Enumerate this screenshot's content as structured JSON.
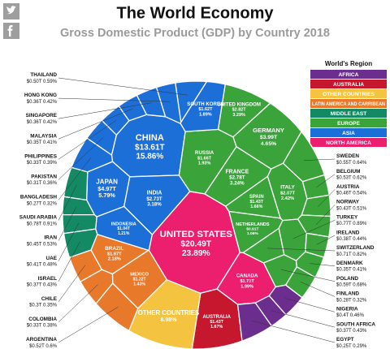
{
  "chart_data": {
    "type": "voronoi-treemap",
    "title": "The World Economy",
    "subtitle": "Gross Domestic Product (GDP) by Country 2018",
    "legend_title": "World's Region",
    "regions": [
      {
        "name": "AFRICA",
        "color": "#6b2d8e"
      },
      {
        "name": "AUSTRALIA",
        "color": "#c5172e"
      },
      {
        "name": "OTHER COUNTRIES",
        "color": "#f4c33f"
      },
      {
        "name": "LATIN AMERICA AND CARRIBEAN",
        "color": "#e8782a"
      },
      {
        "name": "MIDDLE EAST",
        "color": "#138a63"
      },
      {
        "name": "EUROPE",
        "color": "#3aa43a"
      },
      {
        "name": "ASIA",
        "color": "#1d6fd8"
      },
      {
        "name": "NORTH AMERICA",
        "color": "#ec1f6f"
      }
    ],
    "cells": [
      {
        "name": "UNITED STATES",
        "region": "NORTH AMERICA",
        "value": 20.49,
        "value_label": "$20.49T",
        "share": 23.89,
        "share_label": "23.89%"
      },
      {
        "name": "CHINA",
        "region": "ASIA",
        "value": 13.61,
        "value_label": "$13.61T",
        "share": 15.86,
        "share_label": "15.86%"
      },
      {
        "name": "JAPAN",
        "region": "ASIA",
        "value": 4.97,
        "value_label": "$4.97T",
        "share": 5.79,
        "share_label": "5.79%"
      },
      {
        "name": "GERMANY",
        "region": "EUROPE",
        "value": 3.99,
        "value_label": "$3.99T",
        "share": 4.65,
        "share_label": "4.65%"
      },
      {
        "name": "UNITED KINGDOM",
        "region": "EUROPE",
        "value": 2.82,
        "value_label": "$2.82T",
        "share": 3.29,
        "share_label": "3.29%"
      },
      {
        "name": "FRANCE",
        "region": "EUROPE",
        "value": 2.78,
        "value_label": "$2.78T",
        "share": 3.24,
        "share_label": "3.24%"
      },
      {
        "name": "INDIA",
        "region": "ASIA",
        "value": 2.73,
        "value_label": "$2.73T",
        "share": 3.18,
        "share_label": "3.18%"
      },
      {
        "name": "ITALY",
        "region": "EUROPE",
        "value": 2.07,
        "value_label": "$2.07T",
        "share": 2.42,
        "share_label": "2.42%"
      },
      {
        "name": "BRAZIL",
        "region": "LATIN AMERICA AND CARRIBEAN",
        "value": 1.87,
        "value_label": "$1.87T",
        "share": 2.18,
        "share_label": "2.18%"
      },
      {
        "name": "CANADA",
        "region": "NORTH AMERICA",
        "value": 1.71,
        "value_label": "$1.71T",
        "share": 1.99,
        "share_label": "1.99%"
      },
      {
        "name": "RUSSIA",
        "region": "EUROPE",
        "value": 1.66,
        "value_label": "$1.66T",
        "share": 1.93,
        "share_label": "1.93%"
      },
      {
        "name": "SOUTH KOREA",
        "region": "ASIA",
        "value": 1.62,
        "value_label": "$1.62T",
        "share": 1.89,
        "share_label": "1.89%"
      },
      {
        "name": "SPAIN",
        "region": "EUROPE",
        "value": 1.43,
        "value_label": "$1.43T",
        "share": 1.66,
        "share_label": "1.66%"
      },
      {
        "name": "AUSTRALIA",
        "region": "AUSTRALIA",
        "value": 1.43,
        "value_label": "$1.43T",
        "share": 1.67,
        "share_label": "1.67%"
      },
      {
        "name": "MEXICO",
        "region": "LATIN AMERICA AND CARRIBEAN",
        "value": 1.22,
        "value_label": "$1.22T",
        "share": 1.43,
        "share_label": "1.43%"
      },
      {
        "name": "INDONESIA",
        "region": "ASIA",
        "value": 1.04,
        "value_label": "$1.04T",
        "share": 1.21,
        "share_label": "1.21%"
      },
      {
        "name": "NETHERLANDS",
        "region": "EUROPE",
        "value": 0.91,
        "value_label": "$0.91T",
        "share": 1.06,
        "share_label": "1.06%"
      },
      {
        "name": "OTHER COUNTRIES",
        "region": "OTHER COUNTRIES",
        "share": 8.98,
        "share_label": "8.98%"
      },
      {
        "name": "SAUDI ARABIA",
        "region": "MIDDLE EAST",
        "value": 0.78,
        "value_label": "$0.78T",
        "share": 0.91,
        "share_label": "0.91%"
      },
      {
        "name": "TURKEY",
        "region": "EUROPE",
        "value": 0.77,
        "value_label": "$0.77T",
        "share": 0.89,
        "share_label": "0.89%"
      },
      {
        "name": "SWITZERLAND",
        "region": "EUROPE",
        "value": 0.71,
        "value_label": "$0.71T",
        "share": 0.82,
        "share_label": "0.82%"
      },
      {
        "name": "POLAND",
        "region": "EUROPE",
        "value": 0.59,
        "value_label": "$0.59T",
        "share": 0.68,
        "share_label": "0.68%"
      },
      {
        "name": "SWEDEN",
        "region": "EUROPE",
        "value": 0.55,
        "value_label": "$0.55T",
        "share": 0.64,
        "share_label": "0.64%"
      },
      {
        "name": "BELGIUM",
        "region": "EUROPE",
        "value": 0.53,
        "value_label": "$0.53T",
        "share": 0.62,
        "share_label": "0.62%"
      },
      {
        "name": "ARGENTINA",
        "region": "LATIN AMERICA AND CARRIBEAN",
        "value": 0.52,
        "value_label": "$0.52T",
        "share": 0.6,
        "share_label": "0.6%"
      },
      {
        "name": "THAILAND",
        "region": "ASIA",
        "value": 0.5,
        "value_label": "$0.50T",
        "share": 0.59,
        "share_label": "0.59%"
      },
      {
        "name": "AUSTRIA",
        "region": "EUROPE",
        "value": 0.46,
        "value_label": "$0.46T",
        "share": 0.54,
        "share_label": "0.54%"
      },
      {
        "name": "IRAN",
        "region": "MIDDLE EAST",
        "value": 0.45,
        "value_label": "$0.45T",
        "share": 0.53,
        "share_label": "0.53%"
      },
      {
        "name": "NORWAY",
        "region": "EUROPE",
        "value": 0.43,
        "value_label": "$0.43T",
        "share": 0.51,
        "share_label": "0.51%"
      },
      {
        "name": "UAE",
        "region": "MIDDLE EAST",
        "value": 0.41,
        "value_label": "$0.41T",
        "share": 0.48,
        "share_label": "0.48%"
      },
      {
        "name": "NIGERIA",
        "region": "AFRICA",
        "value": 0.4,
        "value_label": "$0.4T",
        "share": 0.46,
        "share_label": "0.46%"
      },
      {
        "name": "IRELAND",
        "region": "EUROPE",
        "value": 0.38,
        "value_label": "$0.38T",
        "share": 0.44,
        "share_label": "0.44%"
      },
      {
        "name": "ISRAEL",
        "region": "MIDDLE EAST",
        "value": 0.37,
        "value_label": "$0.37T",
        "share": 0.43,
        "share_label": "0.43%"
      },
      {
        "name": "SOUTH AFRICA",
        "region": "AFRICA",
        "value": 0.37,
        "value_label": "$0.37T",
        "share": 0.43,
        "share_label": "0.43%"
      },
      {
        "name": "HONG KONG",
        "region": "ASIA",
        "value": 0.36,
        "value_label": "$0.36T",
        "share": 0.42,
        "share_label": "0.42%"
      },
      {
        "name": "SINGAPORE",
        "region": "ASIA",
        "value": 0.36,
        "value_label": "$0.36T",
        "share": 0.42,
        "share_label": "0.42%"
      },
      {
        "name": "MALAYSIA",
        "region": "ASIA",
        "value": 0.35,
        "value_label": "$0.35T",
        "share": 0.41,
        "share_label": "0.41%"
      },
      {
        "name": "DENMARK",
        "region": "EUROPE",
        "value": 0.35,
        "value_label": "$0.35T",
        "share": 0.41,
        "share_label": "0.41%"
      },
      {
        "name": "PHILIPPINES",
        "region": "ASIA",
        "value": 0.33,
        "value_label": "$0.33T",
        "share": 0.39,
        "share_label": "0.39%"
      },
      {
        "name": "COLOMBIA",
        "region": "LATIN AMERICA AND CARRIBEAN",
        "value": 0.33,
        "value_label": "$0.33T",
        "share": 0.38,
        "share_label": "0.38%"
      },
      {
        "name": "PAKISTAN",
        "region": "ASIA",
        "value": 0.31,
        "value_label": "$0.31T",
        "share": 0.36,
        "share_label": "0.36%"
      },
      {
        "name": "CHILE",
        "region": "LATIN AMERICA AND CARRIBEAN",
        "value": 0.3,
        "value_label": "$0.3T",
        "share": 0.35,
        "share_label": "0.35%"
      },
      {
        "name": "FINLAND",
        "region": "EUROPE",
        "value": 0.28,
        "value_label": "$0.28T",
        "share": 0.32,
        "share_label": "0.32%"
      },
      {
        "name": "BANGLADESH",
        "region": "ASIA",
        "value": 0.27,
        "value_label": "$0.27T",
        "share": 0.32,
        "share_label": "0.32%"
      },
      {
        "name": "EGYPT",
        "region": "AFRICA",
        "value": 0.25,
        "value_label": "$0.25T",
        "share": 0.29,
        "share_label": "0.29%"
      }
    ]
  }
}
